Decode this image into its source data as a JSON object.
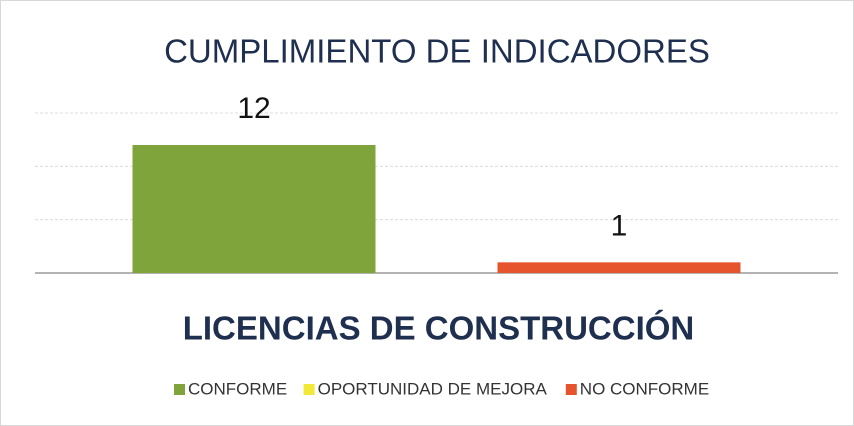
{
  "chart_data": {
    "type": "bar",
    "title": "CUMPLIMIENTO DE INDICADORES",
    "categories": [
      "LICENCIAS DE CONSTRUCCIÓN"
    ],
    "series": [
      {
        "name": "CONFORME",
        "color": "#7fa43b",
        "values": [
          12
        ]
      },
      {
        "name": "OPORTUNIDAD DE MEJORA",
        "color": "#f2e838",
        "values": [
          0
        ]
      },
      {
        "name": "NO CONFORME",
        "color": "#e6542e",
        "values": [
          1
        ]
      }
    ],
    "ylim": [
      0,
      15
    ],
    "yticks": [
      0,
      5,
      10,
      15
    ],
    "grid": true,
    "legend": "bottom"
  }
}
